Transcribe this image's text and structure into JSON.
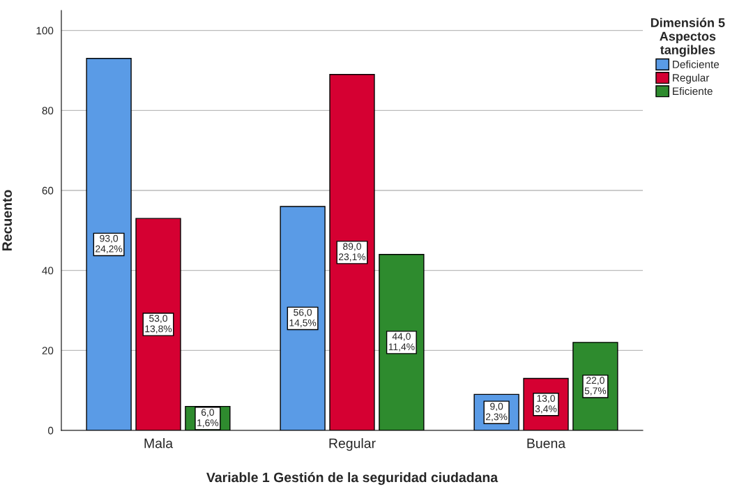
{
  "chart_data": {
    "type": "bar",
    "xlabel": "Variable 1 Gestión de la seguridad ciudadana",
    "ylabel": "Recuento",
    "legend_title": "Dimensión 5\nAspectos\ntangibles",
    "categories": [
      "Mala",
      "Regular",
      "Buena"
    ],
    "series": [
      {
        "name": "Deficiente",
        "color": "#5a9be6",
        "values": [
          93,
          56,
          9
        ],
        "value_labels": [
          "93,0\n24,2%",
          "56,0\n14,5%",
          "9,0\n2,3%"
        ]
      },
      {
        "name": "Regular",
        "color": "#d50032",
        "values": [
          53,
          89,
          13
        ],
        "value_labels": [
          "53,0\n13,8%",
          "89,0\n23,1%",
          "13,0\n3,4%"
        ]
      },
      {
        "name": "Eficiente",
        "color": "#2e8b2e",
        "values": [
          6,
          44,
          22
        ],
        "value_labels": [
          "6,0\n1,6%",
          "44,0\n11,4%",
          "22,0\n5,7%"
        ]
      }
    ],
    "ylim": [
      0,
      105
    ],
    "yticks": [
      0,
      20,
      40,
      60,
      80,
      100
    ],
    "grid": "y",
    "legend": "top right"
  }
}
